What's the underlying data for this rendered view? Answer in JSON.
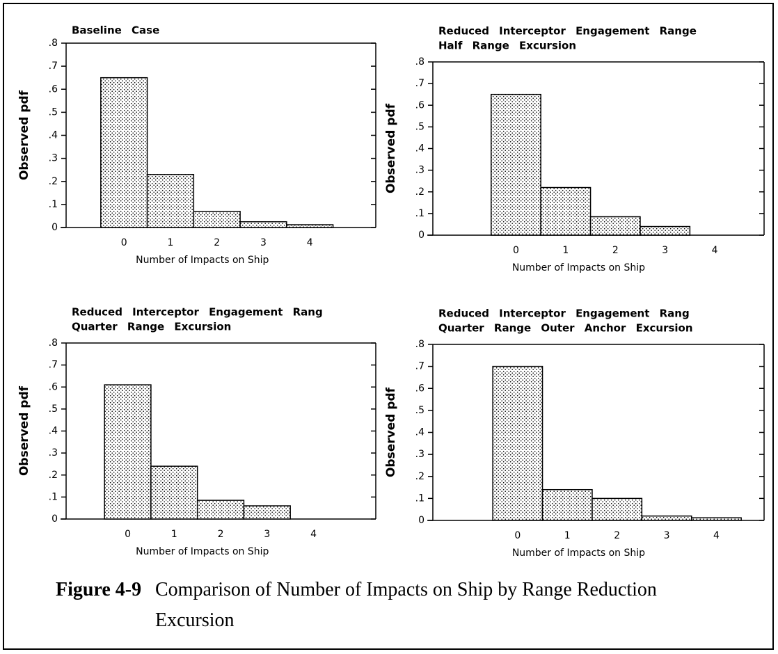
{
  "chart_data": [
    {
      "type": "bar",
      "title": "Baseline Case",
      "xlabel": "Number of Impacts on Ship",
      "ylabel": "Observed pdf",
      "categories": [
        "0",
        "1",
        "2",
        "3",
        "4"
      ],
      "values": [
        0.65,
        0.23,
        0.07,
        0.025,
        0.012
      ],
      "ylim": [
        0,
        0.8
      ],
      "yticks": [
        0,
        {
          "value": 0.1,
          "label": ".1"
        },
        {
          "value": 0.2,
          "label": ".2"
        },
        {
          "value": 0.3,
          "label": ".3"
        },
        {
          "value": 0.4,
          "label": ".4"
        },
        {
          "value": 0.5,
          "label": ".5"
        },
        {
          "value": 0.6,
          "label": ".6"
        },
        {
          "value": 0.7,
          "label": ".7"
        },
        {
          "value": 0.8,
          "label": ".8"
        }
      ]
    },
    {
      "type": "bar",
      "title": "Reduced Interceptor Engagement Range",
      "subtitle": "Half Range Excursion",
      "xlabel": "Number of Impacts on Ship",
      "ylabel": "Observed pdf",
      "categories": [
        "0",
        "1",
        "2",
        "3",
        "4"
      ],
      "values": [
        0.65,
        0.22,
        0.085,
        0.04,
        0
      ],
      "ylim": [
        0,
        0.8
      ],
      "yticks": [
        0,
        {
          "value": 0.1,
          "label": ".1"
        },
        {
          "value": 0.2,
          "label": ".2"
        },
        {
          "value": 0.3,
          "label": ".3"
        },
        {
          "value": 0.4,
          "label": ".4"
        },
        {
          "value": 0.5,
          "label": ".5"
        },
        {
          "value": 0.6,
          "label": ".6"
        },
        {
          "value": 0.7,
          "label": ".7"
        },
        {
          "value": 0.8,
          "label": ".8"
        }
      ]
    },
    {
      "type": "bar",
      "title": "Reduced Interceptor Engagement Rang",
      "subtitle": "Quarter Range Excursion",
      "xlabel": "Number of Impacts on Ship",
      "ylabel": "Observed pdf",
      "categories": [
        "0",
        "1",
        "2",
        "3",
        "4"
      ],
      "values": [
        0.61,
        0.24,
        0.085,
        0.06,
        0
      ],
      "ylim": [
        0,
        0.8
      ],
      "yticks": [
        0,
        {
          "value": 0.1,
          "label": ".1"
        },
        {
          "value": 0.2,
          "label": ".2"
        },
        {
          "value": 0.3,
          "label": ".3"
        },
        {
          "value": 0.4,
          "label": ".4"
        },
        {
          "value": 0.5,
          "label": ".5"
        },
        {
          "value": 0.6,
          "label": ".6"
        },
        {
          "value": 0.7,
          "label": ".7"
        },
        {
          "value": 0.8,
          "label": ".8"
        }
      ]
    },
    {
      "type": "bar",
      "title": "Reduced Interceptor Engagement Rang",
      "subtitle": "Quarter Range Outer Anchor Excursion",
      "xlabel": "Number of Impacts on Ship",
      "ylabel": "Observed pdf",
      "categories": [
        "0",
        "1",
        "2",
        "3",
        "4"
      ],
      "values": [
        0.7,
        0.14,
        0.1,
        0.02,
        0.012
      ],
      "ylim": [
        0,
        0.8
      ],
      "yticks": [
        0,
        {
          "value": 0.1,
          "label": ".1"
        },
        {
          "value": 0.2,
          "label": ".2"
        },
        {
          "value": 0.3,
          "label": ".3"
        },
        {
          "value": 0.4,
          "label": ".4"
        },
        {
          "value": 0.5,
          "label": ".5"
        },
        {
          "value": 0.6,
          "label": ".6"
        },
        {
          "value": 0.7,
          "label": ".7"
        },
        {
          "value": 0.8,
          "label": ".8"
        }
      ]
    }
  ],
  "caption": {
    "label": "Figure 4-9",
    "text": "Comparison of Number of Impacts on Ship by Range Reduction Excursion"
  }
}
